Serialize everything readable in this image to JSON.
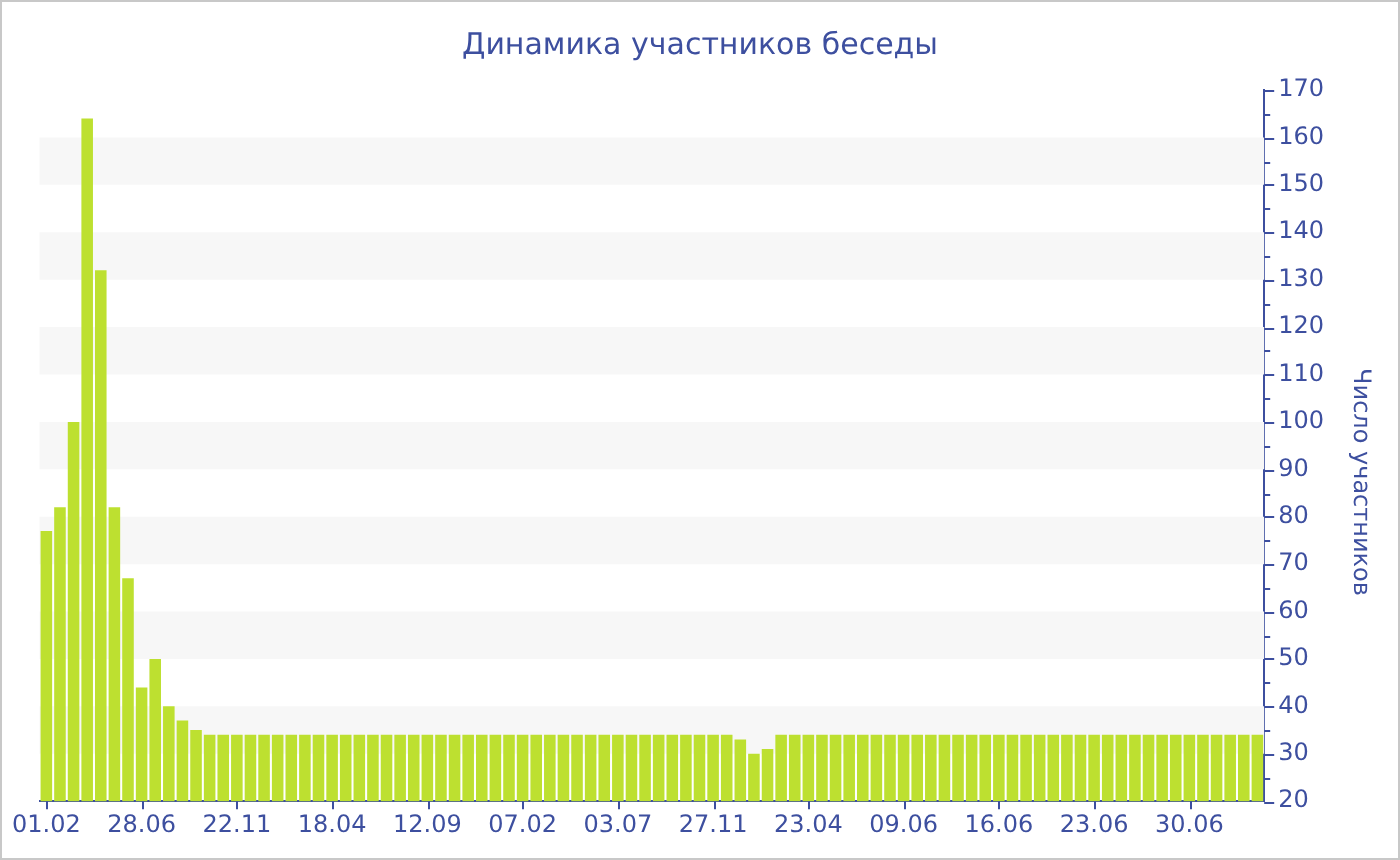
{
  "chart_data": {
    "type": "bar",
    "title": "Динамика участников беседы",
    "ylabel": "Число участников",
    "categories": [
      "01.02",
      null,
      null,
      null,
      null,
      null,
      null,
      "28.06",
      null,
      null,
      null,
      null,
      null,
      null,
      "22.11",
      null,
      null,
      null,
      null,
      null,
      null,
      "18.04",
      null,
      null,
      null,
      null,
      null,
      null,
      "12.09",
      null,
      null,
      null,
      null,
      null,
      null,
      "07.02",
      null,
      null,
      null,
      null,
      null,
      null,
      "03.07",
      null,
      null,
      null,
      null,
      null,
      null,
      "27.11",
      null,
      null,
      null,
      null,
      null,
      null,
      "23.04",
      null,
      null,
      null,
      null,
      null,
      null,
      "09.06",
      null,
      null,
      null,
      null,
      null,
      null,
      "16.06",
      null,
      null,
      null,
      null,
      null,
      null,
      "23.06",
      null,
      null,
      null,
      null,
      null,
      null,
      "30.06",
      null,
      null,
      null,
      null,
      null
    ],
    "values": [
      77,
      82,
      100,
      164,
      132,
      82,
      67,
      44,
      50,
      40,
      37,
      35,
      34,
      34,
      34,
      34,
      34,
      34,
      34,
      34,
      34,
      34,
      34,
      34,
      34,
      34,
      34,
      34,
      34,
      34,
      34,
      34,
      34,
      34,
      34,
      34,
      34,
      34,
      34,
      34,
      34,
      34,
      34,
      34,
      34,
      34,
      34,
      34,
      34,
      34,
      34,
      33,
      30,
      31,
      34,
      34,
      34,
      34,
      34,
      34,
      34,
      34,
      34,
      34,
      34,
      34,
      34,
      34,
      34,
      34,
      34,
      34,
      34,
      34,
      34,
      34,
      34,
      34,
      34,
      34,
      34,
      34,
      34,
      34,
      34,
      34,
      34,
      34,
      34,
      34
    ],
    "color": "#bde030",
    "ylim": [
      20,
      170
    ],
    "yticks": [
      20,
      {
        "value": 25,
        "label": null
      },
      30,
      {
        "value": 35,
        "label": null
      },
      40,
      {
        "value": 45,
        "label": null
      },
      50,
      {
        "value": 55,
        "label": null
      },
      60,
      {
        "value": 65,
        "label": null
      },
      70,
      {
        "value": 75,
        "label": null
      },
      80,
      {
        "value": 85,
        "label": null
      },
      90,
      {
        "value": 95,
        "label": null
      },
      100,
      {
        "value": 105,
        "label": null
      },
      110,
      {
        "value": 115,
        "label": null
      },
      120,
      {
        "value": 125,
        "label": null
      },
      130,
      {
        "value": 135,
        "label": null
      },
      140,
      {
        "value": 145,
        "label": null
      },
      150,
      {
        "value": 155,
        "label": null
      },
      160,
      {
        "value": 165,
        "label": null
      },
      170
    ],
    "bands": [
      {
        "axis": "y",
        "from": 30,
        "to": 40,
        "color": "#f7f7f7"
      },
      {
        "axis": "y",
        "from": 50,
        "to": 60,
        "color": "#f7f7f7"
      },
      {
        "axis": "y",
        "from": 70,
        "to": 80,
        "color": "#f7f7f7"
      },
      {
        "axis": "y",
        "from": 90,
        "to": 100,
        "color": "#f7f7f7"
      },
      {
        "axis": "y",
        "from": 110,
        "to": 120,
        "color": "#f7f7f7"
      },
      {
        "axis": "y",
        "from": 130,
        "to": 140,
        "color": "#f7f7f7"
      },
      {
        "axis": "y",
        "from": 150,
        "to": 160,
        "color": "#f7f7f7"
      }
    ],
    "legend": false
  }
}
